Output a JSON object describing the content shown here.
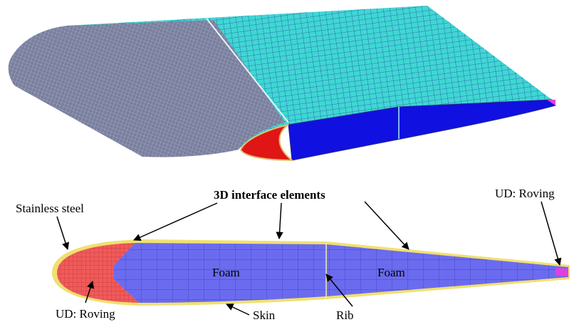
{
  "annotations": [
    {
      "label": "Stainless steel"
    },
    {
      "label": "3D interface elements"
    },
    {
      "label": "UD: Roving"
    },
    {
      "label": "Foam"
    },
    {
      "label": "Foam"
    },
    {
      "label": "UD: Roving"
    },
    {
      "label": "Skin"
    },
    {
      "label": "Rib"
    }
  ]
}
